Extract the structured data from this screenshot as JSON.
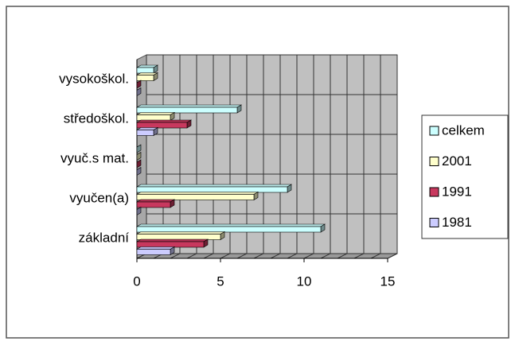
{
  "chart_data": {
    "type": "bar",
    "orientation": "horizontal",
    "categories": [
      "vysokoškol.",
      "středoškol.",
      "vyuč.s mat.",
      "vyučen(a)",
      "základní"
    ],
    "series": [
      {
        "name": "celkem",
        "color": "#ccffff",
        "values": [
          1,
          6,
          0,
          9,
          11
        ]
      },
      {
        "name": "2001",
        "color": "#ffffcc",
        "values": [
          1,
          2,
          0,
          7,
          5
        ]
      },
      {
        "name": "1991",
        "color": "#c8385e",
        "values": [
          0,
          3,
          0,
          2,
          4
        ]
      },
      {
        "name": "1981",
        "color": "#ccccff",
        "values": [
          0,
          1,
          0,
          0,
          2
        ]
      }
    ],
    "xlim": [
      0,
      15
    ],
    "xticks": [
      0,
      5,
      10,
      15
    ],
    "xgrid": [
      0,
      1,
      2,
      3,
      4,
      5,
      6,
      7,
      8,
      9,
      10,
      11,
      12,
      13,
      14,
      15
    ],
    "legend": "right"
  }
}
